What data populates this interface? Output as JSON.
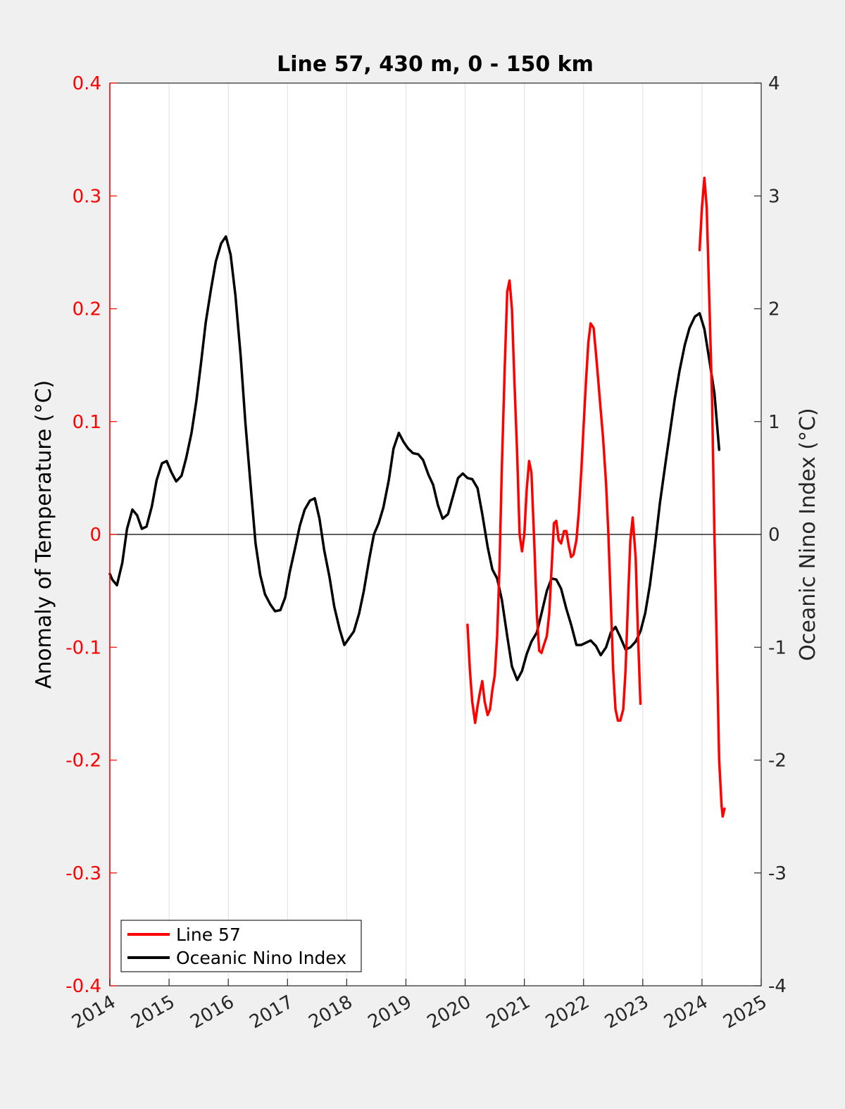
{
  "chart_data": {
    "type": "line",
    "title": "Line 57, 430 m, 0 - 150 km",
    "xlim": [
      2014,
      2025
    ],
    "x_ticks": [
      "2014",
      "2015",
      "2016",
      "2017",
      "2018",
      "2019",
      "2020",
      "2021",
      "2022",
      "2023",
      "2024",
      "2025"
    ],
    "y_left": {
      "label": "Anomaly of Temperature (°C)",
      "lim": [
        -0.4,
        0.4
      ],
      "ticks": [
        "0.4",
        "0.3",
        "0.2",
        "0.1",
        "0",
        "-0.1",
        "-0.2",
        "-0.3",
        "-0.4"
      ],
      "color": "#ff0000"
    },
    "y_right": {
      "label": "Oceanic Nino Index (°C)",
      "lim": [
        -4,
        4
      ],
      "ticks": [
        "4",
        "3",
        "2",
        "1",
        "0",
        "-1",
        "-2",
        "-3",
        "-4"
      ],
      "color": "#262626"
    },
    "zero_line": true,
    "grid": "vertical",
    "legend_position": "bottom-left",
    "series": [
      {
        "name": "Line 57",
        "axis": "left",
        "color": "#ff0000",
        "segments": [
          [
            [
              2020.04,
              -0.08
            ],
            [
              2020.08,
              -0.12
            ],
            [
              2020.12,
              -0.148
            ],
            [
              2020.17,
              -0.167
            ],
            [
              2020.21,
              -0.152
            ],
            [
              2020.25,
              -0.14
            ],
            [
              2020.29,
              -0.13
            ],
            [
              2020.33,
              -0.148
            ],
            [
              2020.38,
              -0.16
            ],
            [
              2020.42,
              -0.155
            ],
            [
              2020.46,
              -0.138
            ],
            [
              2020.5,
              -0.125
            ],
            [
              2020.54,
              -0.09
            ],
            [
              2020.58,
              -0.03
            ],
            [
              2020.62,
              0.06
            ],
            [
              2020.67,
              0.15
            ],
            [
              2020.71,
              0.215
            ],
            [
              2020.75,
              0.225
            ],
            [
              2020.79,
              0.2
            ],
            [
              2020.83,
              0.14
            ],
            [
              2020.88,
              0.07
            ],
            [
              2020.92,
              0.0
            ],
            [
              2020.96,
              -0.015
            ],
            [
              2021.0,
              0.0
            ],
            [
              2021.04,
              0.04
            ],
            [
              2021.08,
              0.065
            ],
            [
              2021.12,
              0.055
            ],
            [
              2021.17,
              -0.01
            ],
            [
              2021.21,
              -0.07
            ],
            [
              2021.25,
              -0.103
            ],
            [
              2021.29,
              -0.105
            ],
            [
              2021.33,
              -0.098
            ],
            [
              2021.38,
              -0.09
            ],
            [
              2021.42,
              -0.07
            ],
            [
              2021.46,
              -0.03
            ],
            [
              2021.5,
              0.01
            ],
            [
              2021.54,
              0.012
            ],
            [
              2021.58,
              -0.005
            ],
            [
              2021.62,
              -0.008
            ],
            [
              2021.67,
              0.003
            ],
            [
              2021.71,
              0.003
            ],
            [
              2021.75,
              -0.01
            ],
            [
              2021.79,
              -0.02
            ],
            [
              2021.83,
              -0.018
            ],
            [
              2021.88,
              -0.005
            ],
            [
              2021.92,
              0.02
            ],
            [
              2021.96,
              0.055
            ],
            [
              2022.0,
              0.095
            ],
            [
              2022.04,
              0.135
            ],
            [
              2022.08,
              0.17
            ],
            [
              2022.12,
              0.187
            ],
            [
              2022.17,
              0.183
            ],
            [
              2022.21,
              0.16
            ],
            [
              2022.25,
              0.135
            ],
            [
              2022.29,
              0.11
            ],
            [
              2022.33,
              0.085
            ],
            [
              2022.38,
              0.045
            ],
            [
              2022.42,
              0.0
            ],
            [
              2022.46,
              -0.06
            ],
            [
              2022.5,
              -0.12
            ],
            [
              2022.54,
              -0.155
            ],
            [
              2022.58,
              -0.165
            ],
            [
              2022.62,
              -0.165
            ],
            [
              2022.67,
              -0.155
            ],
            [
              2022.71,
              -0.12
            ],
            [
              2022.75,
              -0.06
            ],
            [
              2022.79,
              -0.005
            ],
            [
              2022.83,
              0.015
            ],
            [
              2022.88,
              -0.02
            ],
            [
              2022.92,
              -0.09
            ],
            [
              2022.96,
              -0.15
            ]
          ],
          [
            [
              2023.96,
              0.252
            ],
            [
              2024.0,
              0.29
            ],
            [
              2024.04,
              0.316
            ],
            [
              2024.08,
              0.29
            ],
            [
              2024.12,
              0.215
            ],
            [
              2024.17,
              0.12
            ],
            [
              2024.21,
              0.0
            ],
            [
              2024.25,
              -0.1
            ],
            [
              2024.29,
              -0.2
            ],
            [
              2024.33,
              -0.24
            ],
            [
              2024.35,
              -0.25
            ],
            [
              2024.38,
              -0.243
            ]
          ]
        ]
      },
      {
        "name": "Oceanic Nino Index",
        "axis": "right",
        "color": "#000000",
        "points": [
          [
            2014.0,
            -0.35
          ],
          [
            2014.04,
            -0.4
          ],
          [
            2014.12,
            -0.45
          ],
          [
            2014.21,
            -0.25
          ],
          [
            2014.29,
            0.05
          ],
          [
            2014.38,
            0.22
          ],
          [
            2014.46,
            0.17
          ],
          [
            2014.54,
            0.05
          ],
          [
            2014.62,
            0.07
          ],
          [
            2014.71,
            0.25
          ],
          [
            2014.79,
            0.48
          ],
          [
            2014.88,
            0.63
          ],
          [
            2014.96,
            0.65
          ],
          [
            2015.04,
            0.55
          ],
          [
            2015.12,
            0.47
          ],
          [
            2015.21,
            0.52
          ],
          [
            2015.29,
            0.68
          ],
          [
            2015.38,
            0.9
          ],
          [
            2015.46,
            1.18
          ],
          [
            2015.54,
            1.52
          ],
          [
            2015.62,
            1.88
          ],
          [
            2015.71,
            2.18
          ],
          [
            2015.79,
            2.42
          ],
          [
            2015.88,
            2.58
          ],
          [
            2015.96,
            2.64
          ],
          [
            2016.04,
            2.48
          ],
          [
            2016.12,
            2.12
          ],
          [
            2016.21,
            1.58
          ],
          [
            2016.29,
            0.98
          ],
          [
            2016.38,
            0.42
          ],
          [
            2016.46,
            -0.08
          ],
          [
            2016.54,
            -0.36
          ],
          [
            2016.62,
            -0.53
          ],
          [
            2016.71,
            -0.62
          ],
          [
            2016.79,
            -0.68
          ],
          [
            2016.88,
            -0.67
          ],
          [
            2016.96,
            -0.56
          ],
          [
            2017.04,
            -0.33
          ],
          [
            2017.12,
            -0.14
          ],
          [
            2017.21,
            0.08
          ],
          [
            2017.29,
            0.22
          ],
          [
            2017.38,
            0.3
          ],
          [
            2017.46,
            0.32
          ],
          [
            2017.54,
            0.14
          ],
          [
            2017.62,
            -0.14
          ],
          [
            2017.71,
            -0.38
          ],
          [
            2017.79,
            -0.64
          ],
          [
            2017.88,
            -0.84
          ],
          [
            2017.96,
            -0.98
          ],
          [
            2018.04,
            -0.92
          ],
          [
            2018.12,
            -0.86
          ],
          [
            2018.21,
            -0.7
          ],
          [
            2018.29,
            -0.5
          ],
          [
            2018.38,
            -0.22
          ],
          [
            2018.46,
            0.0
          ],
          [
            2018.54,
            0.1
          ],
          [
            2018.62,
            0.24
          ],
          [
            2018.71,
            0.48
          ],
          [
            2018.79,
            0.76
          ],
          [
            2018.88,
            0.9
          ],
          [
            2018.96,
            0.82
          ],
          [
            2019.04,
            0.76
          ],
          [
            2019.12,
            0.72
          ],
          [
            2019.21,
            0.71
          ],
          [
            2019.29,
            0.66
          ],
          [
            2019.38,
            0.53
          ],
          [
            2019.46,
            0.44
          ],
          [
            2019.54,
            0.26
          ],
          [
            2019.62,
            0.14
          ],
          [
            2019.71,
            0.18
          ],
          [
            2019.79,
            0.33
          ],
          [
            2019.88,
            0.5
          ],
          [
            2019.96,
            0.54
          ],
          [
            2020.04,
            0.5
          ],
          [
            2020.12,
            0.49
          ],
          [
            2020.21,
            0.41
          ],
          [
            2020.29,
            0.18
          ],
          [
            2020.38,
            -0.11
          ],
          [
            2020.46,
            -0.31
          ],
          [
            2020.54,
            -0.39
          ],
          [
            2020.62,
            -0.58
          ],
          [
            2020.71,
            -0.9
          ],
          [
            2020.79,
            -1.17
          ],
          [
            2020.88,
            -1.29
          ],
          [
            2020.96,
            -1.21
          ],
          [
            2021.04,
            -1.06
          ],
          [
            2021.12,
            -0.95
          ],
          [
            2021.21,
            -0.87
          ],
          [
            2021.29,
            -0.7
          ],
          [
            2021.38,
            -0.5
          ],
          [
            2021.46,
            -0.39
          ],
          [
            2021.54,
            -0.4
          ],
          [
            2021.62,
            -0.48
          ],
          [
            2021.71,
            -0.66
          ],
          [
            2021.79,
            -0.8
          ],
          [
            2021.88,
            -0.98
          ],
          [
            2021.96,
            -0.98
          ],
          [
            2022.04,
            -0.96
          ],
          [
            2022.12,
            -0.94
          ],
          [
            2022.21,
            -0.99
          ],
          [
            2022.29,
            -1.07
          ],
          [
            2022.38,
            -1.0
          ],
          [
            2022.46,
            -0.87
          ],
          [
            2022.54,
            -0.82
          ],
          [
            2022.62,
            -0.91
          ],
          [
            2022.71,
            -1.02
          ],
          [
            2022.79,
            -1.0
          ],
          [
            2022.88,
            -0.95
          ],
          [
            2022.96,
            -0.86
          ],
          [
            2023.04,
            -0.7
          ],
          [
            2023.12,
            -0.45
          ],
          [
            2023.21,
            -0.08
          ],
          [
            2023.29,
            0.28
          ],
          [
            2023.38,
            0.62
          ],
          [
            2023.46,
            0.91
          ],
          [
            2023.54,
            1.2
          ],
          [
            2023.62,
            1.45
          ],
          [
            2023.71,
            1.68
          ],
          [
            2023.79,
            1.83
          ],
          [
            2023.88,
            1.93
          ],
          [
            2023.96,
            1.96
          ],
          [
            2024.04,
            1.82
          ],
          [
            2024.12,
            1.56
          ],
          [
            2024.21,
            1.25
          ],
          [
            2024.29,
            0.75
          ]
        ]
      }
    ]
  }
}
